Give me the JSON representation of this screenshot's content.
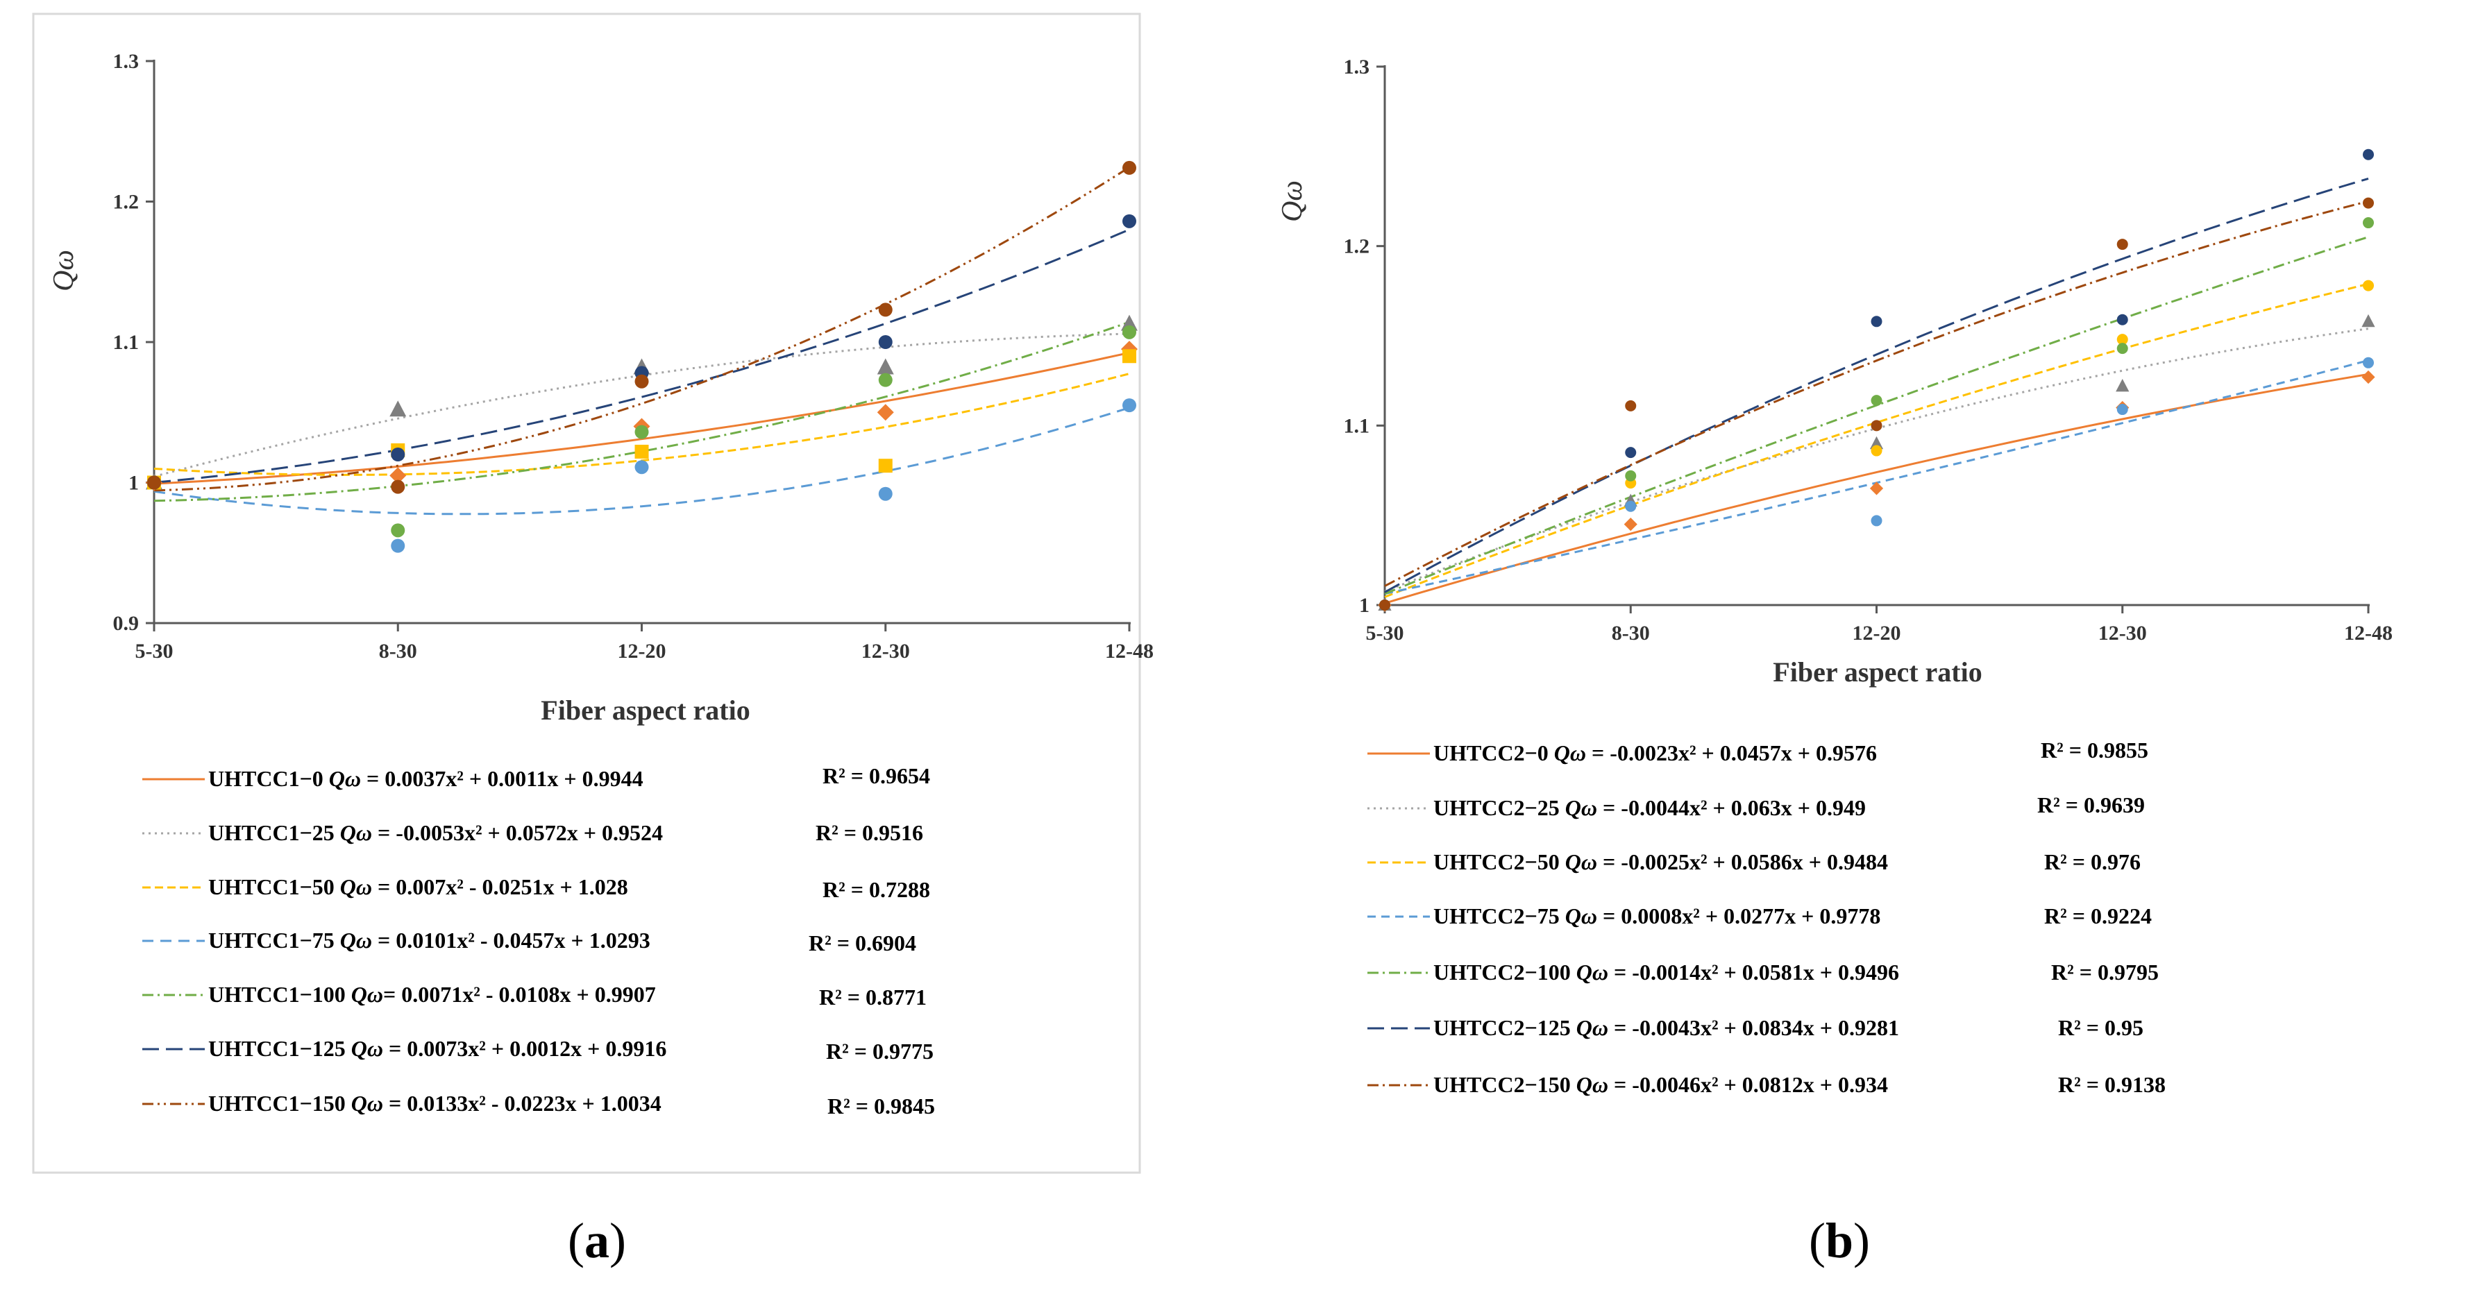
{
  "chart_data": [
    {
      "id": "a",
      "type": "scatter",
      "caption": "a",
      "xlabel": "Fiber aspect ratio",
      "ylabel": "Qω",
      "categories": [
        "5-30",
        "8-30",
        "12-20",
        "12-30",
        "12-48"
      ],
      "ylim": [
        0.9,
        1.3
      ],
      "yticks": [
        "0.9",
        "1",
        "1.1",
        "1.2",
        "1.3"
      ],
      "series": [
        {
          "name": "UHTCC1−0",
          "eq_prefix": "Qω",
          "eq_body": " = 0.0037x² + 0.0011x + 0.9944",
          "r2": "R² = 0.9654",
          "coef": [
            0.0037,
            0.0011,
            0.9944
          ],
          "color": "#ed7d31",
          "dash": "",
          "marker": "diamond",
          "values": [
            1.0,
            1.005,
            1.04,
            1.05,
            1.095
          ]
        },
        {
          "name": "UHTCC1−25",
          "eq_prefix": "Qω",
          "eq_body": " = -0.0053x² + 0.0572x + 0.9524",
          "r2": "R² = 0.9516",
          "coef": [
            -0.0053,
            0.0572,
            0.9524
          ],
          "color": "#a5a5a5",
          "dash": "3,6",
          "marker": "triangle",
          "values": [
            1.0,
            1.052,
            1.082,
            1.082,
            1.113
          ]
        },
        {
          "name": "UHTCC1−50",
          "eq_prefix": "Qω",
          "eq_body": " = 0.007x² - 0.0251x + 1.028",
          "r2": "R² = 0.7288",
          "coef": [
            0.007,
            -0.0251,
            1.028
          ],
          "color": "#ffc000",
          "dash": "12,6",
          "marker": "square",
          "values": [
            1.0,
            1.023,
            1.022,
            1.012,
            1.09
          ]
        },
        {
          "name": "UHTCC1−75",
          "eq_prefix": "Qω",
          "eq_body": " = 0.0101x² - 0.0457x + 1.0293",
          "r2": "R² = 0.6904",
          "coef": [
            0.0101,
            -0.0457,
            1.0293
          ],
          "color": "#5b9bd5",
          "dash": "16,10",
          "marker": "circle",
          "values": [
            1.0,
            0.955,
            1.011,
            0.992,
            1.055
          ]
        },
        {
          "name": "UHTCC1−100",
          "eq_prefix": "Qω",
          "eq_body": "= 0.0071x² - 0.0108x + 0.9907",
          "r2": "R² = 0.8771",
          "coef": [
            0.0071,
            -0.0108,
            0.9907
          ],
          "color": "#70ad47",
          "dash": "16,6,3,6",
          "marker": "circle",
          "values": [
            1.0,
            0.966,
            1.036,
            1.073,
            1.107
          ]
        },
        {
          "name": "UHTCC1−125",
          "eq_prefix": "Qω",
          "eq_body": " = 0.0073x² + 0.0012x + 0.9916",
          "r2": "R² = 0.9775",
          "coef": [
            0.0073,
            0.0012,
            0.9916
          ],
          "color": "#264478",
          "dash": "24,10",
          "marker": "circle",
          "values": [
            1.0,
            1.02,
            1.078,
            1.1,
            1.186
          ]
        },
        {
          "name": "UHTCC1−150",
          "eq_prefix": "Qω",
          "eq_body": " = 0.0133x² - 0.0223x + 1.0034",
          "r2": "R² = 0.9845",
          "coef": [
            0.0133,
            -0.0223,
            1.0034
          ],
          "color": "#9e480e",
          "dash": "16,6,3,6,3,6",
          "marker": "circle",
          "values": [
            1.0,
            0.997,
            1.072,
            1.123,
            1.224
          ]
        }
      ]
    },
    {
      "id": "b",
      "type": "scatter",
      "caption": "b",
      "xlabel": "Fiber aspect ratio",
      "ylabel": "Qω",
      "categories": [
        "5-30",
        "8-30",
        "12-20",
        "12-30",
        "12-48"
      ],
      "ylim": [
        1.0,
        1.3
      ],
      "yticks": [
        "1",
        "1.1",
        "1.2",
        "1.3"
      ],
      "series": [
        {
          "name": "UHTCC2−0",
          "eq_prefix": "Qω",
          "eq_body": " = -0.0023x² + 0.0457x + 0.9576",
          "r2": "R² = 0.9855",
          "coef": [
            -0.0023,
            0.0457,
            0.9576
          ],
          "color": "#ed7d31",
          "dash": "",
          "marker": "diamond",
          "values": [
            1.0,
            1.045,
            1.065,
            1.11,
            1.127
          ]
        },
        {
          "name": "UHTCC2−25",
          "eq_prefix": "Qω",
          "eq_body": " = -0.0044x² + 0.063x + 0.949",
          "r2": "R² = 0.9639",
          "coef": [
            -0.0044,
            0.063,
            0.949
          ],
          "color": "#a5a5a5",
          "dash": "3,6",
          "marker": "triangle",
          "values": [
            1.0,
            1.058,
            1.09,
            1.122,
            1.158
          ]
        },
        {
          "name": "UHTCC2−50",
          "eq_prefix": "Qω",
          "eq_body": " = -0.0025x² + 0.0586x + 0.9484",
          "r2": "R² = 0.976",
          "coef": [
            -0.0025,
            0.0586,
            0.9484
          ],
          "color": "#ffc000",
          "dash": "12,6",
          "marker": "circle",
          "values": [
            1.0,
            1.068,
            1.086,
            1.148,
            1.178
          ]
        },
        {
          "name": "UHTCC2−75",
          "eq_prefix": "Qω",
          "eq_body": " = 0.0008x² + 0.0277x + 0.9778",
          "r2": "R² = 0.9224",
          "coef": [
            0.0008,
            0.0277,
            0.9778
          ],
          "color": "#5b9bd5",
          "dash": "12,8",
          "marker": "circle",
          "values": [
            1.0,
            1.055,
            1.047,
            1.109,
            1.135
          ]
        },
        {
          "name": "UHTCC2−100",
          "eq_prefix": "Qω",
          "eq_body": " = -0.0014x² + 0.0581x + 0.9496",
          "r2": "R² = 0.9795",
          "coef": [
            -0.0014,
            0.0581,
            0.9496
          ],
          "color": "#70ad47",
          "dash": "16,6,3,6",
          "marker": "circle",
          "values": [
            1.0,
            1.072,
            1.114,
            1.143,
            1.213
          ]
        },
        {
          "name": "UHTCC2−125",
          "eq_prefix": "Qω",
          "eq_body": " = -0.0043x² + 0.0834x + 0.9281",
          "r2": "R² = 0.95",
          "coef": [
            -0.0043,
            0.0834,
            0.9281
          ],
          "color": "#264478",
          "dash": "24,10",
          "marker": "circle",
          "values": [
            1.0,
            1.085,
            1.158,
            1.159,
            1.251
          ]
        },
        {
          "name": "UHTCC2−150",
          "eq_prefix": "Qω",
          "eq_body": " = -0.0046x² + 0.0812x + 0.934",
          "r2": "R² = 0.9138",
          "coef": [
            -0.0046,
            0.0812,
            0.934
          ],
          "color": "#9e480e",
          "dash": "16,6,3,6",
          "marker": "circle",
          "values": [
            1.0,
            1.111,
            1.1,
            1.201,
            1.224
          ]
        }
      ]
    }
  ]
}
